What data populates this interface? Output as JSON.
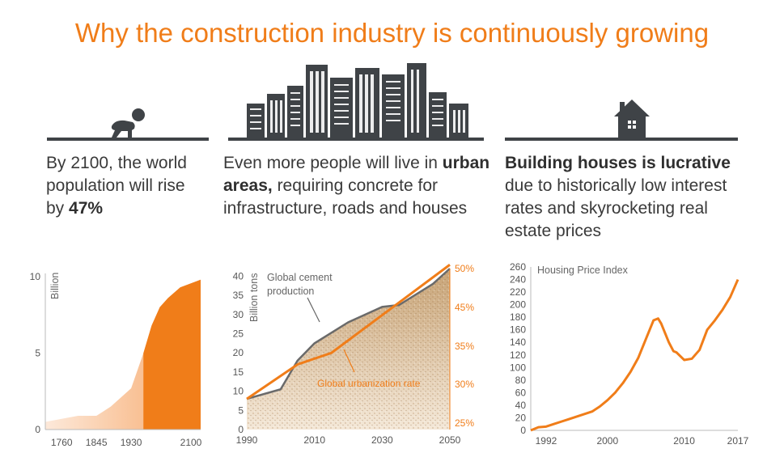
{
  "title": "Why the construction industry is continuously growing",
  "colors": {
    "accent": "#f07d19",
    "dark": "#3f4347",
    "text": "#3a3a3a"
  },
  "columns": [
    {
      "icon": "crawling-baby-icon",
      "text_pre": "By 2100, the world population will rise by ",
      "text_bold": "47%",
      "text_post": ""
    },
    {
      "icon": "city-skyline-icon",
      "text_pre": "Even more people will live in ",
      "text_bold": "urban areas,",
      "text_post": " requiring concrete for infrastructure, roads and houses"
    },
    {
      "icon": "house-icon",
      "text_pre": "",
      "text_bold": "Building houses is lucrative",
      "text_post": " due to historically low interest rates and skyrocketing real estate prices"
    }
  ],
  "chart_data": [
    {
      "type": "area",
      "ylabel": "Billion",
      "x_ticks": [
        "1760",
        "1845",
        "1930",
        "2100"
      ],
      "y_ticks": [
        0,
        5,
        10
      ],
      "ylim": [
        0,
        10
      ],
      "series": [
        {
          "x": [
            1720,
            1760,
            1800,
            1845,
            1880,
            1930,
            1960,
            1980,
            2000,
            2020,
            2050,
            2100
          ],
          "values": [
            0.5,
            0.7,
            0.9,
            0.9,
            1.5,
            2.7,
            5.0,
            6.8,
            8.0,
            8.6,
            9.3,
            9.8
          ]
        }
      ],
      "highlight_from_x": 1960
    },
    {
      "type": "line",
      "x_ticks": [
        1990,
        2010,
        2030,
        2050
      ],
      "xlim": [
        1990,
        2050
      ],
      "y_ticks": [
        0,
        5,
        10,
        15,
        20,
        25,
        30,
        35,
        40
      ],
      "ylim": [
        0,
        42
      ],
      "ylabel": "Billion tons",
      "y2_ticks": [
        "25%",
        "30%",
        "35%",
        "45%",
        "50%"
      ],
      "series": [
        {
          "name": "Global cement production",
          "x": [
            1990,
            2000,
            2005,
            2010,
            2020,
            2030,
            2035,
            2045,
            2050
          ],
          "values": [
            8,
            10.5,
            18,
            22.5,
            28,
            32,
            32.5,
            38,
            42
          ]
        },
        {
          "name": "Global urbanization rate",
          "x": [
            1990,
            2005,
            2015,
            2050
          ],
          "values": [
            8,
            17,
            20,
            43
          ]
        }
      ]
    },
    {
      "type": "line",
      "title": "Housing Price Index",
      "x_ticks": [
        1992,
        2000,
        2010,
        2017
      ],
      "xlim": [
        1990,
        2017
      ],
      "y_ticks": [
        0,
        20,
        40,
        60,
        80,
        100,
        120,
        140,
        160,
        180,
        200,
        220,
        240,
        260
      ],
      "ylim": [
        0,
        260
      ],
      "series": [
        {
          "name": "Housing Price Index",
          "x": [
            1990,
            1991,
            1992,
            1993,
            1994,
            1995,
            1996,
            1997,
            1998,
            1999,
            2000,
            2001,
            2002,
            2003,
            2004,
            2005,
            2006,
            2006.6,
            2007,
            2008,
            2008.6,
            2009,
            2010,
            2011,
            2012,
            2013,
            2014,
            2015,
            2016,
            2017
          ],
          "values": [
            0,
            5,
            6,
            10,
            14,
            18,
            22,
            26,
            30,
            38,
            48,
            60,
            75,
            93,
            115,
            145,
            175,
            178,
            170,
            140,
            126,
            124,
            112,
            114,
            128,
            160,
            175,
            192,
            212,
            240
          ]
        }
      ]
    }
  ]
}
